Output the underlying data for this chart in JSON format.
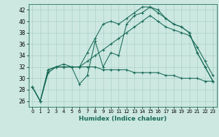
{
  "xlabel": "Humidex (Indice chaleur)",
  "ylabel": "",
  "bg_color": "#cce8e0",
  "line_color": "#1a6b5a",
  "grid_color": "#aacfc7",
  "xlim": [
    -0.5,
    23.5
  ],
  "ylim": [
    25,
    43
  ],
  "yticks": [
    26,
    28,
    30,
    32,
    34,
    36,
    38,
    40,
    42
  ],
  "xticks": [
    0,
    1,
    2,
    3,
    4,
    5,
    6,
    7,
    8,
    9,
    10,
    11,
    12,
    13,
    14,
    15,
    16,
    17,
    18,
    19,
    20,
    21,
    22,
    23
  ],
  "series": [
    [
      28.5,
      26.0,
      31.0,
      32.0,
      32.5,
      32.0,
      29.0,
      30.5,
      36.5,
      32.0,
      34.5,
      34.0,
      39.5,
      41.0,
      41.5,
      42.5,
      42.0,
      40.5,
      39.5,
      39.0,
      38.0,
      34.5,
      32.0,
      29.5
    ],
    [
      28.5,
      26.0,
      31.0,
      32.0,
      32.0,
      32.0,
      32.0,
      34.5,
      37.0,
      39.5,
      40.0,
      39.5,
      40.5,
      41.5,
      42.5,
      42.5,
      41.5,
      40.5,
      39.5,
      39.0,
      38.0,
      34.5,
      32.0,
      29.5
    ],
    [
      28.5,
      26.0,
      31.5,
      32.0,
      32.0,
      32.0,
      32.0,
      33.0,
      34.0,
      35.0,
      36.0,
      37.0,
      38.0,
      39.0,
      40.0,
      41.0,
      40.0,
      39.0,
      38.5,
      38.0,
      37.5,
      35.5,
      33.0,
      30.5
    ],
    [
      28.5,
      26.0,
      31.5,
      32.0,
      32.0,
      32.0,
      32.0,
      32.0,
      32.0,
      31.5,
      31.5,
      31.5,
      31.5,
      31.0,
      31.0,
      31.0,
      31.0,
      30.5,
      30.5,
      30.0,
      30.0,
      30.0,
      29.5,
      29.5
    ]
  ]
}
